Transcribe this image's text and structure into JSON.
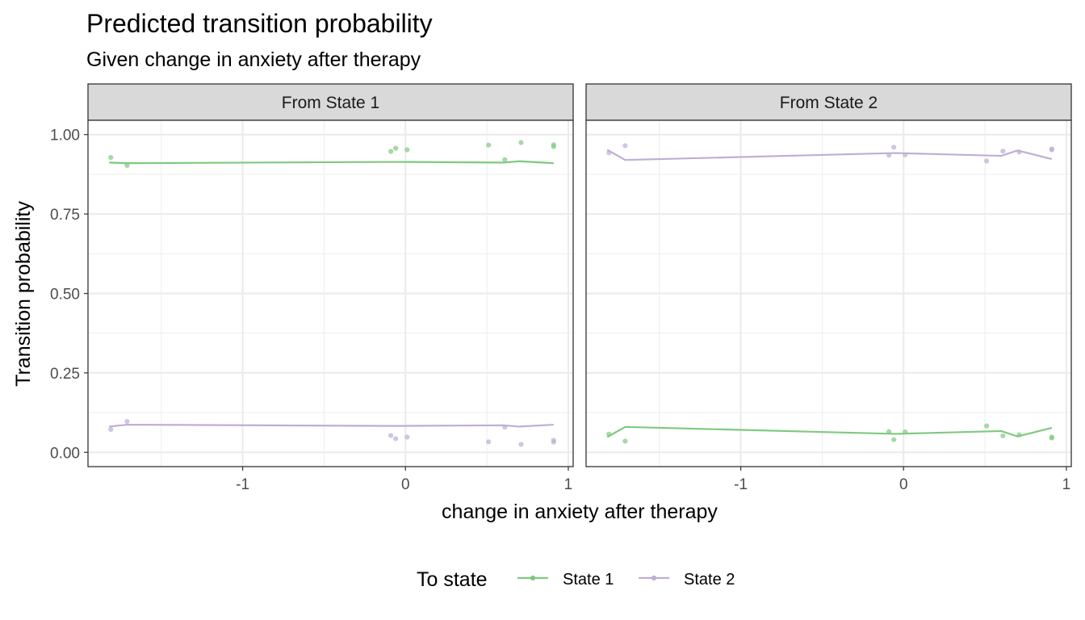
{
  "chart_data": {
    "type": "line",
    "title": "Predicted transition probability",
    "subtitle": "Given change in anxiety after therapy",
    "xlabel": "change in anxiety after therapy",
    "ylabel": "Transition probability",
    "xlim": [
      -1.95,
      1.03
    ],
    "ylim": [
      -0.045,
      1.045
    ],
    "x_ticks": [
      -1,
      0,
      1
    ],
    "x_tick_labels": [
      "-1",
      "0",
      "1"
    ],
    "y_ticks": [
      0,
      0.25,
      0.5,
      0.75,
      1
    ],
    "y_tick_labels": [
      "0.00",
      "0.25",
      "0.50",
      "0.75",
      "1.00"
    ],
    "grid": true,
    "legend": {
      "title": "To state",
      "position": "bottom",
      "items": [
        {
          "name": "State 1",
          "color": "#7fc97f"
        },
        {
          "name": "State 2",
          "color": "#beaed4"
        }
      ]
    },
    "colors": {
      "State 1": "#7fc97f",
      "State 2": "#beaed4"
    },
    "facets": [
      {
        "label": "From State 1",
        "series": [
          {
            "name": "State 1",
            "line": {
              "x": [
                -1.82,
                -1.71,
                -0.05,
                0.6,
                0.7,
                0.91
              ],
              "y": [
                0.912,
                0.91,
                0.914,
                0.912,
                0.916,
                0.91
              ]
            },
            "points": {
              "x": [
                -1.81,
                -1.71,
                -0.09,
                -0.06,
                0.01,
                0.51,
                0.61,
                0.71,
                0.91,
                0.91
              ],
              "y": [
                0.928,
                0.903,
                0.947,
                0.957,
                0.952,
                0.967,
                0.921,
                0.975,
                0.968,
                0.962
              ]
            }
          },
          {
            "name": "State 2",
            "line": {
              "x": [
                -1.82,
                -1.71,
                -0.05,
                0.6,
                0.7,
                0.91
              ],
              "y": [
                0.081,
                0.087,
                0.083,
                0.085,
                0.081,
                0.087
              ]
            },
            "points": {
              "x": [
                -1.81,
                -1.71,
                -0.09,
                -0.06,
                0.01,
                0.51,
                0.61,
                0.71,
                0.91,
                0.91
              ],
              "y": [
                0.072,
                0.097,
                0.053,
                0.043,
                0.048,
                0.033,
                0.079,
                0.025,
                0.032,
                0.038
              ]
            }
          }
        ]
      },
      {
        "label": "From State 2",
        "series": [
          {
            "name": "State 1",
            "line": {
              "x": [
                -1.82,
                -1.71,
                -0.05,
                0.6,
                0.7,
                0.91
              ],
              "y": [
                0.048,
                0.08,
                0.058,
                0.067,
                0.05,
                0.077
              ]
            },
            "points": {
              "x": [
                -1.81,
                -1.71,
                -0.09,
                -0.06,
                0.01,
                0.51,
                0.61,
                0.71,
                0.91,
                0.91
              ],
              "y": [
                0.057,
                0.035,
                0.065,
                0.04,
                0.064,
                0.083,
                0.052,
                0.055,
                0.045,
                0.048
              ]
            }
          },
          {
            "name": "State 2",
            "line": {
              "x": [
                -1.82,
                -1.71,
                -0.05,
                0.6,
                0.7,
                0.91
              ],
              "y": [
                0.952,
                0.92,
                0.942,
                0.933,
                0.95,
                0.923
              ]
            },
            "points": {
              "x": [
                -1.81,
                -1.71,
                -0.09,
                -0.06,
                0.01,
                0.51,
                0.61,
                0.71,
                0.91,
                0.91
              ],
              "y": [
                0.943,
                0.965,
                0.935,
                0.96,
                0.936,
                0.917,
                0.948,
                0.945,
                0.955,
                0.952
              ]
            }
          }
        ]
      }
    ]
  }
}
